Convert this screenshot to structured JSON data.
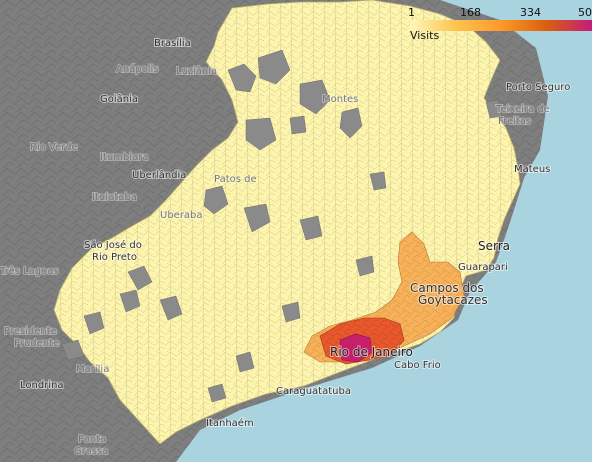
{
  "legend": {
    "title": "Visits",
    "ticks": [
      "1",
      "168",
      "334",
      "50"
    ],
    "colors": [
      "#fff7bc",
      "#fec44f",
      "#fe9929",
      "#d95f0e",
      "#c51b7d"
    ]
  },
  "colors": {
    "ocean": "#a9d3df",
    "outside_land": "#7e7e7e",
    "low": "#fdf5ae",
    "medium": "#f6b159",
    "high": "#e9572d",
    "highest": "#c6206b",
    "no_data": "#8a8a8a"
  },
  "places": [
    {
      "name": "Brasília",
      "kind": "city"
    },
    {
      "name": "Anápolis",
      "kind": "city"
    },
    {
      "name": "Luziânia",
      "kind": "city"
    },
    {
      "name": "Goiânia",
      "kind": "city"
    },
    {
      "name": "Rio Verde",
      "kind": "city"
    },
    {
      "name": "Itumbiara",
      "kind": "city"
    },
    {
      "name": "Ituiutaba",
      "kind": "city"
    },
    {
      "name": "Uberlândia",
      "kind": "city"
    },
    {
      "name": "Uberaba",
      "kind": "city"
    },
    {
      "name": "São José do Rio Preto",
      "kind": "city"
    },
    {
      "name": "Três Lagoas",
      "kind": "city"
    },
    {
      "name": "Presidente Prudente",
      "kind": "city"
    },
    {
      "name": "Marília",
      "kind": "city"
    },
    {
      "name": "Londrina",
      "kind": "city"
    },
    {
      "name": "Ponta Grossa",
      "kind": "city"
    },
    {
      "name": "Porto Seguro",
      "kind": "city"
    },
    {
      "name": "Teixeira de Freitas",
      "kind": "city"
    },
    {
      "name": "São Mateus",
      "kind": "city"
    },
    {
      "name": "Serra",
      "kind": "city"
    },
    {
      "name": "Guarapari",
      "kind": "city"
    },
    {
      "name": "Campos dos Goytacazes",
      "kind": "city"
    },
    {
      "name": "Rio de Janeiro",
      "kind": "city"
    },
    {
      "name": "Cabo Frio",
      "kind": "city"
    },
    {
      "name": "Caraguatatuba",
      "kind": "city"
    },
    {
      "name": "Itanhaém",
      "kind": "city"
    },
    {
      "name": "Patos de Minas",
      "kind": "city"
    },
    {
      "name": "Montes Claros",
      "kind": "city"
    }
  ]
}
